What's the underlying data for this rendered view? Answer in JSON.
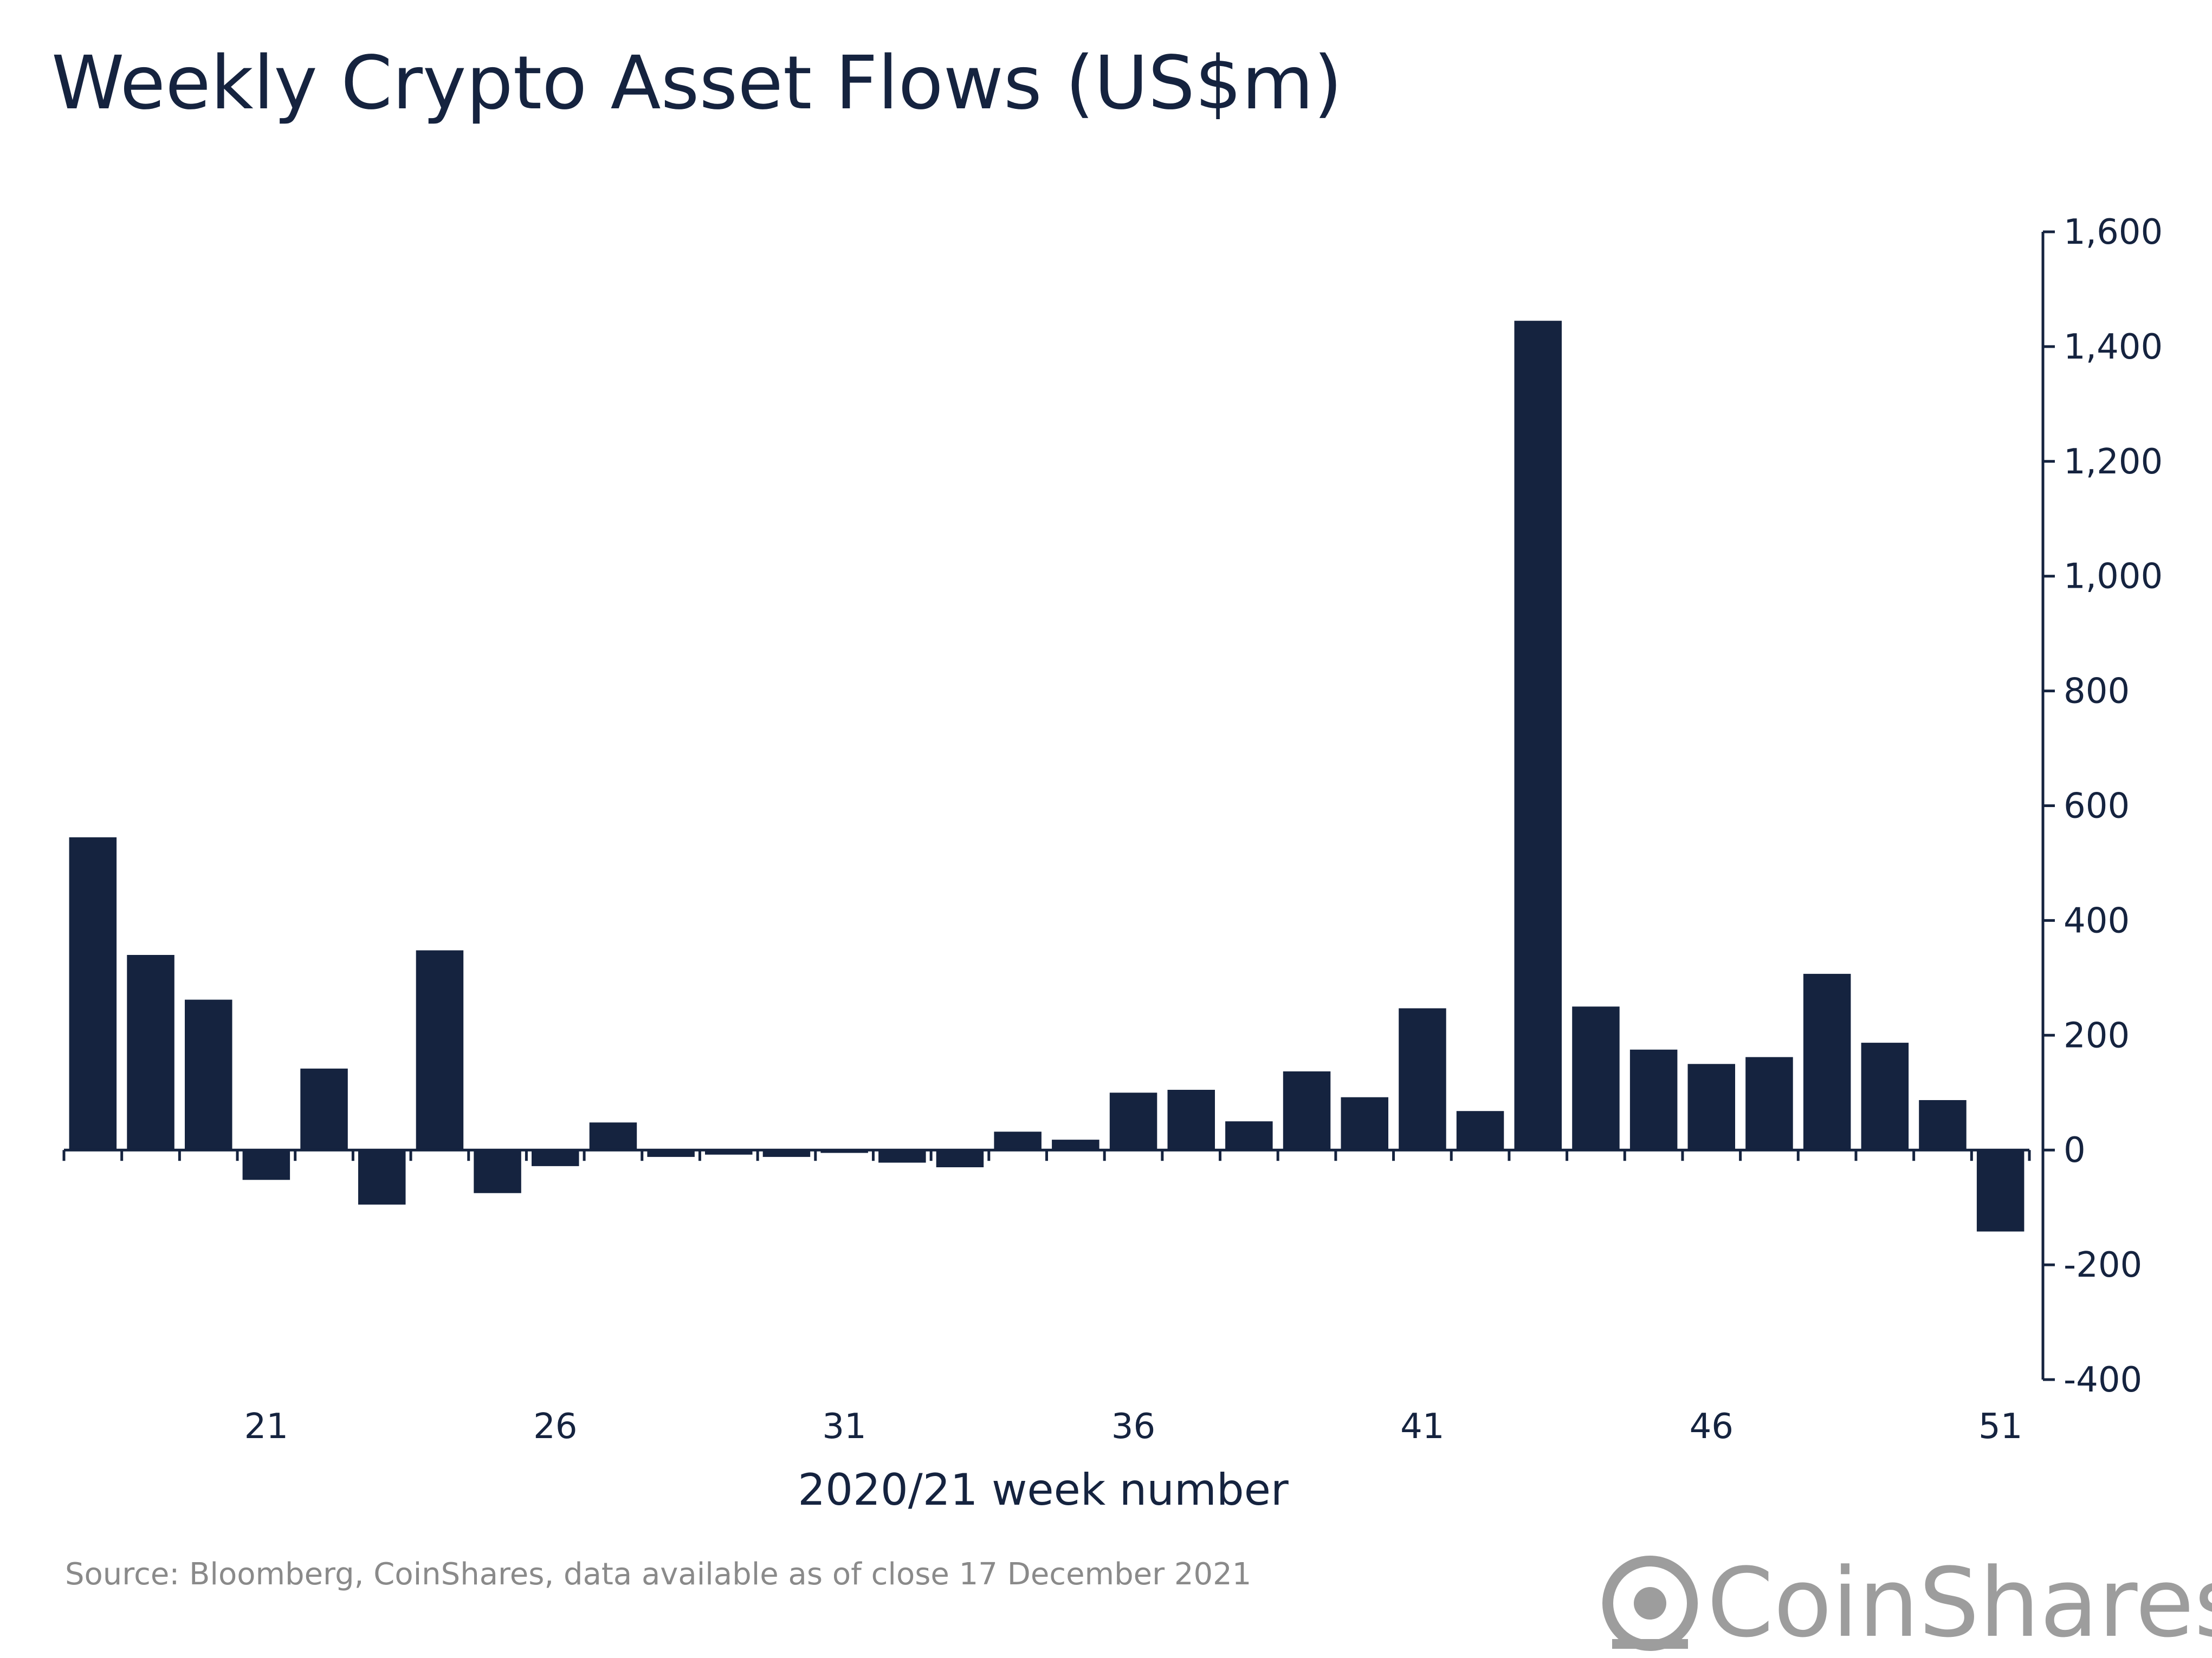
{
  "chart_data": {
    "type": "bar",
    "title": "Weekly Crypto Asset Flows (US$m)",
    "xlabel": "2020/21 week number",
    "ylabel": "",
    "ylim": [
      -400,
      1600
    ],
    "y_ticks": [
      1600,
      1400,
      1200,
      1000,
      800,
      600,
      400,
      200,
      0,
      -200,
      -400
    ],
    "y_tick_labels": [
      "1,600",
      "1,400",
      "1,200",
      "1,000",
      "800",
      "600",
      "400",
      "200",
      "0",
      "-200",
      "-400"
    ],
    "x_tick_labels": [
      "21",
      "26",
      "31",
      "36",
      "41",
      "46",
      "51"
    ],
    "y_axis_side": "right",
    "grid": false,
    "categories": [
      "18",
      "19",
      "20",
      "21",
      "22",
      "23",
      "24",
      "25",
      "26",
      "27",
      "28",
      "29",
      "30",
      "31",
      "32",
      "33",
      "34",
      "35",
      "36",
      "37",
      "38",
      "39",
      "40",
      "41",
      "42",
      "43",
      "44",
      "45",
      "46",
      "47",
      "48",
      "49",
      "50",
      "51"
    ],
    "values": [
      545,
      340,
      262,
      -52,
      142,
      -95,
      348,
      -75,
      -28,
      48,
      -12,
      -8,
      -12,
      -5,
      -22,
      -30,
      32,
      18,
      100,
      105,
      50,
      137,
      92,
      247,
      68,
      1445,
      250,
      175,
      150,
      162,
      307,
      187,
      87,
      -142
    ],
    "color": "#15233f"
  },
  "source_note": "Source: Bloomberg, CoinShares, data available as of close 17 December 2021",
  "brand": {
    "name": "CoinShares",
    "icon": "coinshares-logo-icon",
    "color": "#9d9d9d"
  }
}
